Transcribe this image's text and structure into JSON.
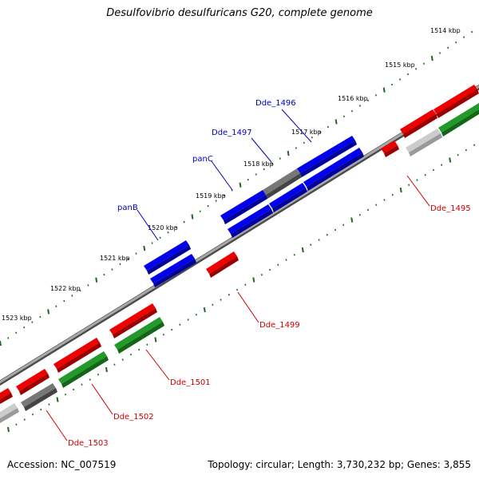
{
  "title": "Desulfovibrio desulfuricans G20, complete genome",
  "accession": "Accession: NC_007519",
  "summary": "Topology: circular; Length: 3,730,232 bp; Genes: 3,855",
  "colors": {
    "backbone": "#8c8c8c",
    "forward_cds": "#0000ee",
    "forward_cds_side": "#00009a",
    "reverse_cds": "#ee0000",
    "reverse_cds_side": "#9a0000",
    "forward_pseudo": "#777777",
    "reverse_rna_green": "#22992a",
    "reverse_light": "#cccccc",
    "tick": "#226622",
    "blue_label": "#0000bb",
    "red_label": "#cc0000"
  },
  "scale_labels": [
    "1514 kbp",
    "1515 kbp",
    "1516 kbp",
    "1517 kbp",
    "1518 kbp",
    "1519 kbp",
    "1520 kbp",
    "1521 kbp",
    "1522 kbp",
    "1523 kbp"
  ],
  "forward_gene_labels": [
    "Dde_1496",
    "Dde_1497",
    "panC",
    "panB"
  ],
  "reverse_gene_labels": [
    "Dde_1495",
    "Dde_1499",
    "Dde_1501",
    "Dde_1502",
    "Dde_1503"
  ]
}
